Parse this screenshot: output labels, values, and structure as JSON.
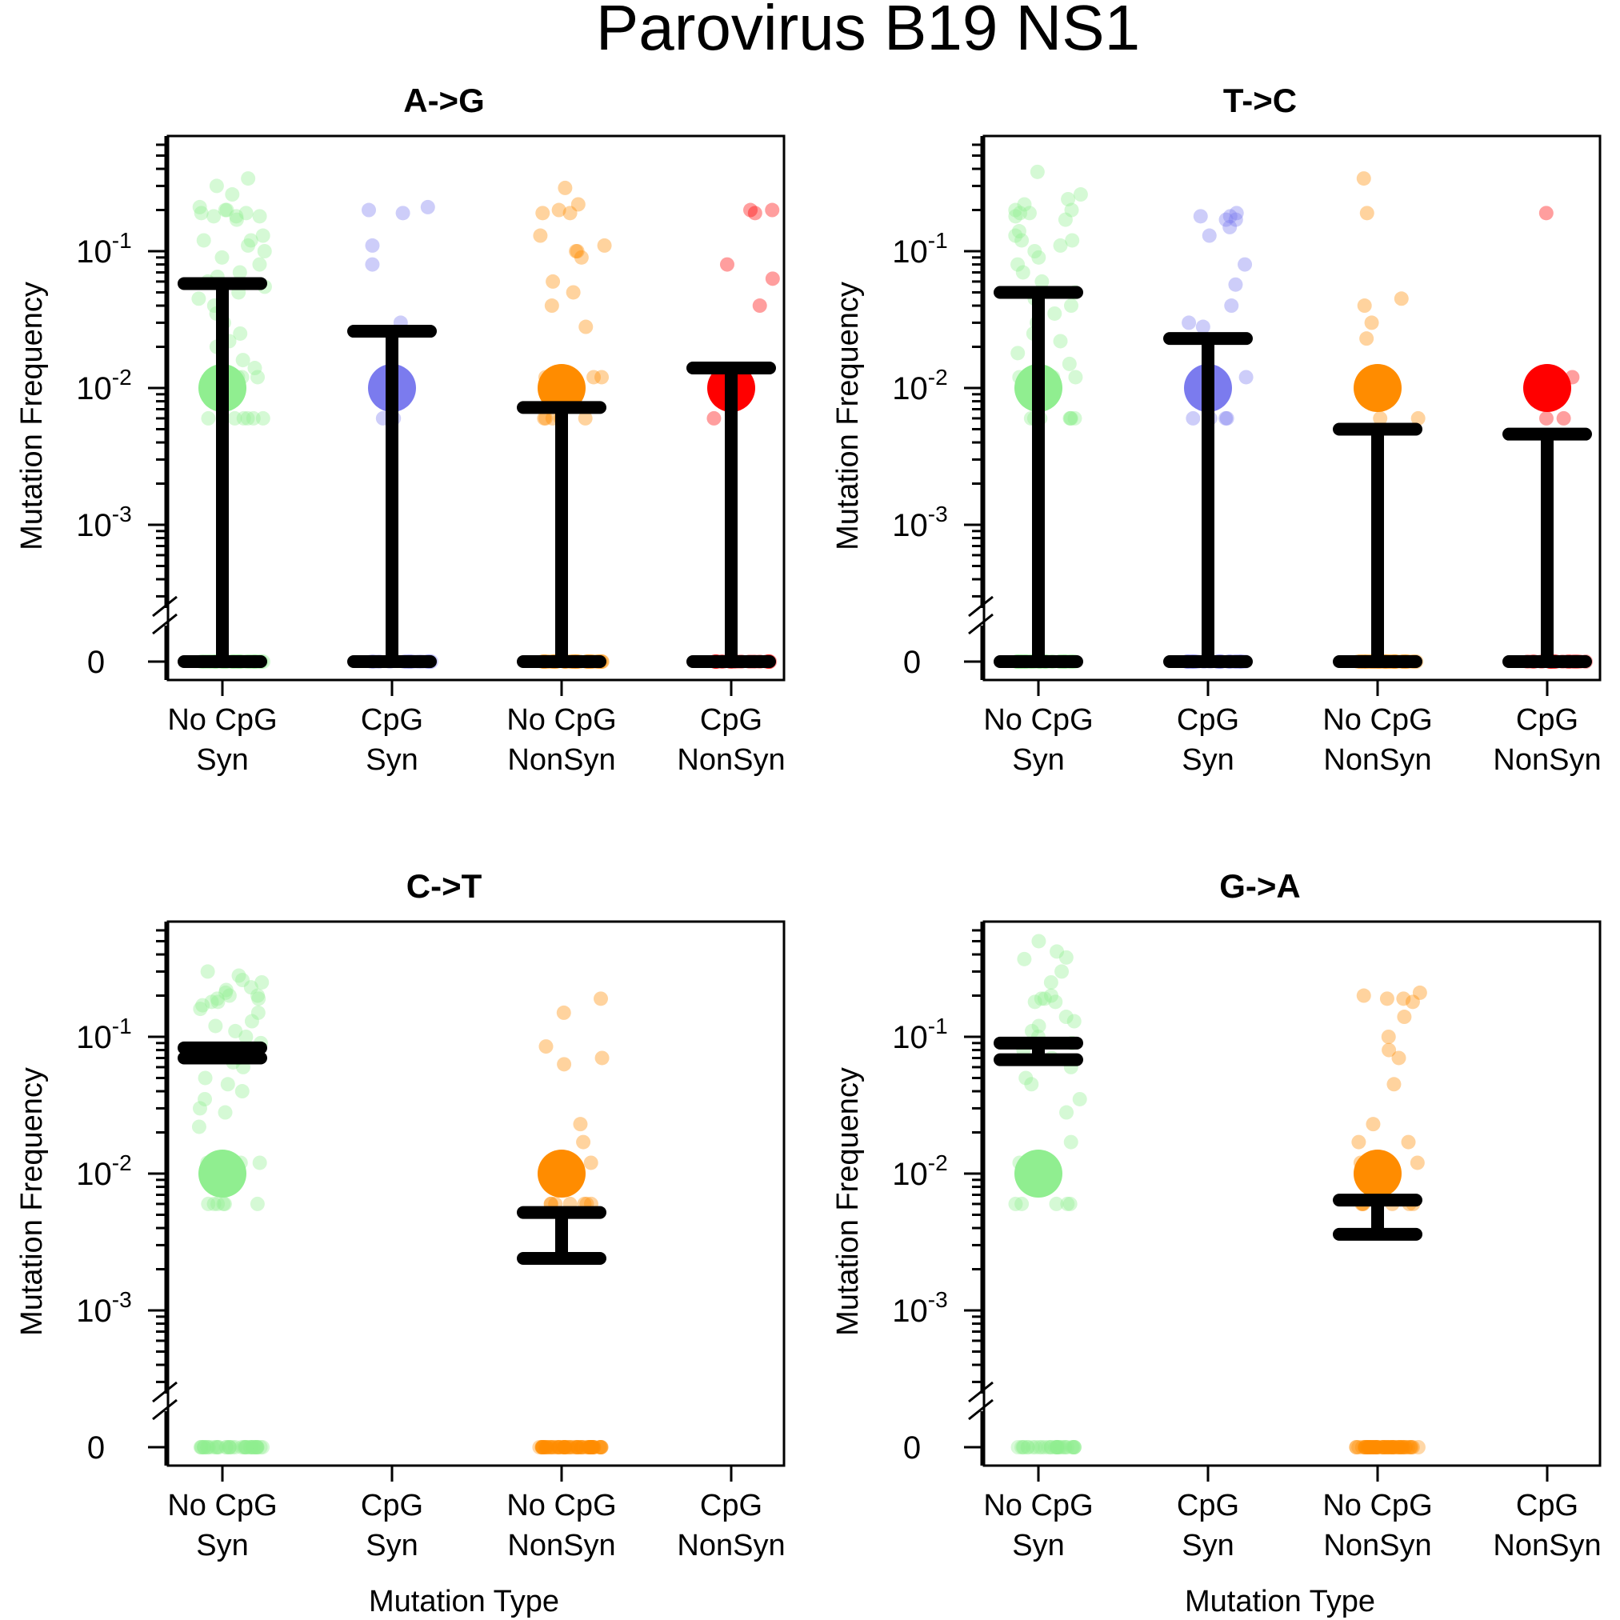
{
  "figure": {
    "title": "Parovirus B19 NS1",
    "categories": [
      {
        "line1": "No CpG",
        "line2": "Syn"
      },
      {
        "line1": "CpG",
        "line2": "Syn"
      },
      {
        "line1": "No CpG",
        "line2": "NonSyn"
      },
      {
        "line1": "CpG",
        "line2": "NonSyn"
      }
    ],
    "y_axis_label": "Mutation Frequency",
    "x_axis_label": "Mutation Type",
    "y_tick_labels": {
      "zero": "0",
      "base": "10",
      "exponents": [
        "-1",
        "-2",
        "-3"
      ]
    },
    "colors": {
      "No CpG Syn": "#90EE90",
      "CpG Syn": "#7B7BEE",
      "No CpG NonSyn": "#FF8C00",
      "CpG NonSyn": "#FF0000",
      "error_bar": "#000000"
    }
  },
  "chart_data": [
    {
      "type": "scatter",
      "title": "A->G",
      "yscale": "log (base 10) with break to 0",
      "ylim": [
        0.0002,
        0.8
      ],
      "show_xlabel": false,
      "series": [
        {
          "category": "No CpG Syn",
          "median": 0.01,
          "ci": [
            0,
            0.058
          ],
          "points": [
            0.34,
            0.3,
            0.26,
            0.21,
            0.2,
            0.2,
            0.19,
            0.19,
            0.18,
            0.18,
            0.18,
            0.17,
            0.13,
            0.12,
            0.12,
            0.11,
            0.1,
            0.09,
            0.08,
            0.07,
            0.065,
            0.06,
            0.055,
            0.05,
            0.045,
            0.04,
            0.035,
            0.03,
            0.025,
            0.022,
            0.02,
            0.016,
            0.014,
            0.012,
            0.012,
            0.012,
            0.006,
            0.006,
            0.006,
            0.006,
            0.006,
            0.006
          ],
          "zeros": 40
        },
        {
          "category": "CpG Syn",
          "median": 0.01,
          "ci": [
            0,
            0.026
          ],
          "points": [
            0.21,
            0.2,
            0.19,
            0.11,
            0.08,
            0.03,
            0.006,
            0.006
          ],
          "zeros": 15
        },
        {
          "category": "No CpG NonSyn",
          "median": 0.01,
          "ci": [
            0,
            0.0072
          ],
          "points": [
            0.29,
            0.22,
            0.2,
            0.19,
            0.19,
            0.13,
            0.11,
            0.1,
            0.1,
            0.09,
            0.06,
            0.05,
            0.04,
            0.028,
            0.012,
            0.012,
            0.012,
            0.006,
            0.006,
            0.006,
            0.006,
            0.006
          ],
          "zeros": 40
        },
        {
          "category": "CpG NonSyn",
          "median": 0.01,
          "ci": [
            0,
            0.014
          ],
          "points": [
            0.2,
            0.2,
            0.19,
            0.08,
            0.063,
            0.04,
            0.006
          ],
          "zeros": 20
        }
      ]
    },
    {
      "type": "scatter",
      "title": "T->C",
      "yscale": "log (base 10) with break to 0",
      "ylim": [
        0.0002,
        0.8
      ],
      "show_xlabel": false,
      "series": [
        {
          "category": "No CpG Syn",
          "median": 0.01,
          "ci": [
            0,
            0.05
          ],
          "points": [
            0.38,
            0.26,
            0.24,
            0.22,
            0.2,
            0.2,
            0.19,
            0.19,
            0.18,
            0.17,
            0.14,
            0.13,
            0.12,
            0.12,
            0.11,
            0.1,
            0.09,
            0.08,
            0.07,
            0.06,
            0.05,
            0.045,
            0.04,
            0.035,
            0.03,
            0.025,
            0.022,
            0.018,
            0.015,
            0.012,
            0.012,
            0.012,
            0.006,
            0.006,
            0.006,
            0.006,
            0.006,
            0.006,
            0.006
          ],
          "zeros": 40
        },
        {
          "category": "CpG Syn",
          "median": 0.01,
          "ci": [
            0,
            0.023
          ],
          "points": [
            0.19,
            0.18,
            0.18,
            0.17,
            0.17,
            0.15,
            0.13,
            0.08,
            0.057,
            0.04,
            0.03,
            0.028,
            0.012,
            0.012,
            0.006,
            0.006,
            0.006,
            0.006
          ],
          "zeros": 25
        },
        {
          "category": "No CpG NonSyn",
          "median": 0.01,
          "ci": [
            0,
            0.005
          ],
          "points": [
            0.34,
            0.19,
            0.045,
            0.04,
            0.03,
            0.023,
            0.012,
            0.012,
            0.006,
            0.006
          ],
          "zeros": 40
        },
        {
          "category": "CpG NonSyn",
          "median": 0.01,
          "ci": [
            0,
            0.0046
          ],
          "points": [
            0.19,
            0.012,
            0.006,
            0.006
          ],
          "zeros": 20
        }
      ]
    },
    {
      "type": "scatter",
      "title": "C->T",
      "yscale": "log (base 10) with break to 0",
      "ylim": [
        0.0002,
        0.8
      ],
      "show_xlabel": true,
      "series": [
        {
          "category": "No CpG Syn",
          "median": 0.01,
          "ci": [
            0.07,
            0.083
          ],
          "points": [
            0.3,
            0.28,
            0.26,
            0.25,
            0.23,
            0.22,
            0.21,
            0.2,
            0.2,
            0.19,
            0.19,
            0.18,
            0.18,
            0.17,
            0.16,
            0.15,
            0.13,
            0.12,
            0.11,
            0.1,
            0.09,
            0.08,
            0.075,
            0.07,
            0.065,
            0.06,
            0.05,
            0.045,
            0.04,
            0.035,
            0.03,
            0.028,
            0.022,
            0.012,
            0.012,
            0.012,
            0.006,
            0.006,
            0.006,
            0.006,
            0.006,
            0.006
          ],
          "zeros": 40
        },
        {
          "category": "CpG Syn",
          "median": null,
          "ci": null,
          "points": [],
          "zeros": 0
        },
        {
          "category": "No CpG NonSyn",
          "median": 0.01,
          "ci": [
            0.0024,
            0.0052
          ],
          "points": [
            0.19,
            0.15,
            0.085,
            0.07,
            0.063,
            0.023,
            0.017,
            0.012,
            0.012,
            0.006,
            0.006,
            0.006,
            0.006,
            0.006,
            0.006,
            0.006
          ],
          "zeros": 60
        },
        {
          "category": "CpG NonSyn",
          "median": null,
          "ci": null,
          "points": [],
          "zeros": 0
        }
      ]
    },
    {
      "type": "scatter",
      "title": "G->A",
      "yscale": "log (base 10) with break to 0",
      "ylim": [
        0.0002,
        0.8
      ],
      "show_xlabel": true,
      "series": [
        {
          "category": "No CpG Syn",
          "median": 0.01,
          "ci": [
            0.068,
            0.09
          ],
          "points": [
            0.5,
            0.42,
            0.38,
            0.37,
            0.3,
            0.25,
            0.2,
            0.19,
            0.19,
            0.18,
            0.18,
            0.14,
            0.13,
            0.12,
            0.11,
            0.1,
            0.09,
            0.08,
            0.07,
            0.06,
            0.05,
            0.045,
            0.035,
            0.028,
            0.017,
            0.012,
            0.012,
            0.006,
            0.006,
            0.006,
            0.006,
            0.006
          ],
          "zeros": 30
        },
        {
          "category": "CpG Syn",
          "median": null,
          "ci": null,
          "points": [],
          "zeros": 0
        },
        {
          "category": "No CpG NonSyn",
          "median": 0.01,
          "ci": [
            0.0036,
            0.0064
          ],
          "points": [
            0.21,
            0.2,
            0.19,
            0.19,
            0.18,
            0.14,
            0.1,
            0.08,
            0.07,
            0.045,
            0.023,
            0.017,
            0.017,
            0.012,
            0.012,
            0.012,
            0.006,
            0.006,
            0.006,
            0.006,
            0.006,
            0.006
          ],
          "zeros": 60
        },
        {
          "category": "CpG NonSyn",
          "median": null,
          "ci": null,
          "points": [],
          "zeros": 0
        }
      ]
    }
  ]
}
